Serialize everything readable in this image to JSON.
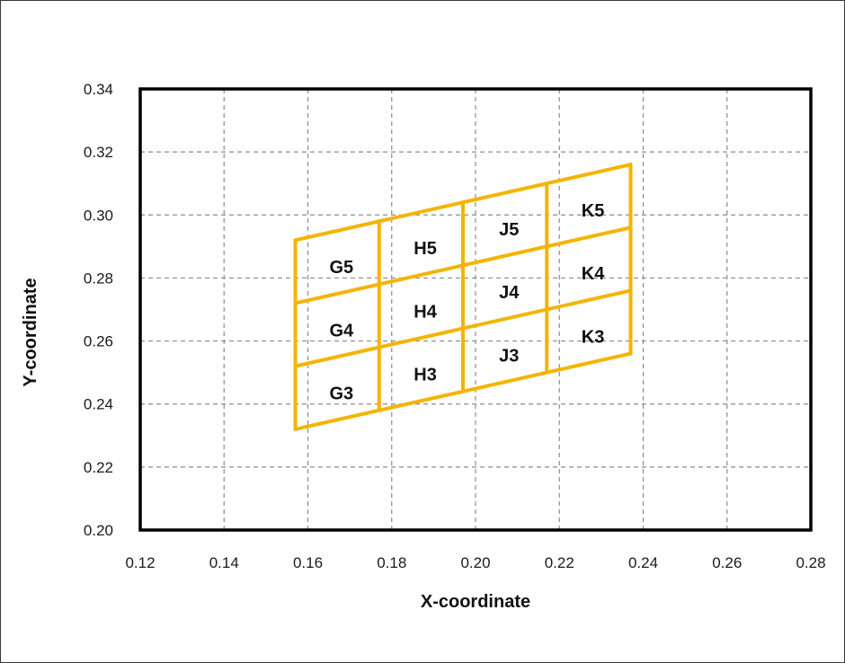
{
  "chart_data": {
    "type": "grid-diagram",
    "title": "",
    "xlabel": "X-coordinate",
    "ylabel": "Y-coordinate",
    "xlim": [
      0.12,
      0.28
    ],
    "ylim": [
      0.2,
      0.34
    ],
    "xticks": [
      "0.12",
      "0.14",
      "0.16",
      "0.18",
      "0.20",
      "0.22",
      "0.24",
      "0.26",
      "0.28"
    ],
    "yticks": [
      "0.20",
      "0.22",
      "0.24",
      "0.26",
      "0.28",
      "0.30",
      "0.32",
      "0.34"
    ],
    "grid": true,
    "grid_style": "dashed",
    "line_color": "#f4b400",
    "columns_x": [
      0.157,
      0.177,
      0.197,
      0.217,
      0.237
    ],
    "row_lines": [
      {
        "x": [
          0.157,
          0.237
        ],
        "y": [
          0.232,
          0.256
        ]
      },
      {
        "x": [
          0.157,
          0.237
        ],
        "y": [
          0.252,
          0.276
        ]
      },
      {
        "x": [
          0.157,
          0.237
        ],
        "y": [
          0.272,
          0.296
        ]
      },
      {
        "x": [
          0.157,
          0.237
        ],
        "y": [
          0.292,
          0.316
        ]
      }
    ],
    "cells": [
      {
        "label": "G5",
        "x": 0.168,
        "y": 0.2835
      },
      {
        "label": "H5",
        "x": 0.188,
        "y": 0.2895
      },
      {
        "label": "J5",
        "x": 0.208,
        "y": 0.2955
      },
      {
        "label": "K5",
        "x": 0.228,
        "y": 0.3015
      },
      {
        "label": "G4",
        "x": 0.168,
        "y": 0.2635
      },
      {
        "label": "H4",
        "x": 0.188,
        "y": 0.2695
      },
      {
        "label": "J4",
        "x": 0.208,
        "y": 0.2755
      },
      {
        "label": "K4",
        "x": 0.228,
        "y": 0.2815
      },
      {
        "label": "G3",
        "x": 0.168,
        "y": 0.2435
      },
      {
        "label": "H3",
        "x": 0.188,
        "y": 0.2495
      },
      {
        "label": "J3",
        "x": 0.208,
        "y": 0.2555
      },
      {
        "label": "K3",
        "x": 0.228,
        "y": 0.2615
      }
    ]
  }
}
